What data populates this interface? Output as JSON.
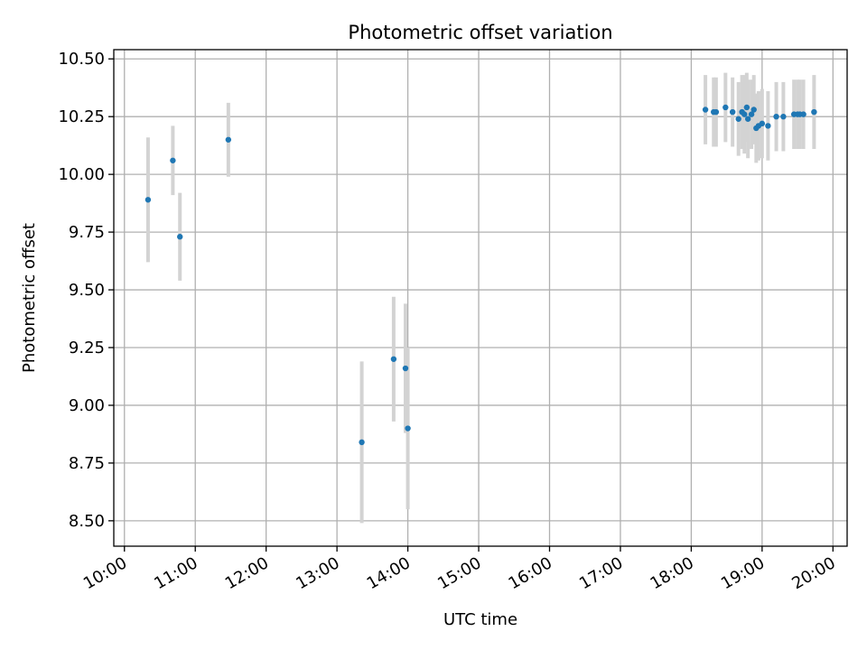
{
  "chart_data": {
    "type": "scatter",
    "title": "Photometric offset variation",
    "xlabel": "UTC time",
    "ylabel": "Photometric offset",
    "xlim": [
      "09:51",
      "20:12"
    ],
    "ylim": [
      8.39,
      10.54
    ],
    "grid": true,
    "x_ticks": [
      "10:00",
      "11:00",
      "12:00",
      "13:00",
      "14:00",
      "15:00",
      "16:00",
      "17:00",
      "18:00",
      "19:00",
      "20:00"
    ],
    "y_ticks": [
      "8.50",
      "8.75",
      "9.00",
      "9.25",
      "9.50",
      "9.75",
      "10.00",
      "10.25",
      "10.50"
    ],
    "point_color": "#1f77b4",
    "errorbar_color": "#d3d3d3",
    "series": [
      {
        "points": [
          {
            "x": "10:20",
            "y": 9.89,
            "err": 0.27
          },
          {
            "x": "10:41",
            "y": 10.06,
            "err": 0.15
          },
          {
            "x": "10:47",
            "y": 9.73,
            "err": 0.19
          },
          {
            "x": "11:28",
            "y": 10.15,
            "err": 0.16
          },
          {
            "x": "13:21",
            "y": 8.84,
            "err": 0.35
          },
          {
            "x": "13:48",
            "y": 9.2,
            "err": 0.27
          },
          {
            "x": "13:58",
            "y": 9.16,
            "err": 0.28
          },
          {
            "x": "14:00",
            "y": 8.9,
            "err": 0.35
          },
          {
            "x": "18:12",
            "y": 10.28,
            "err": 0.15
          },
          {
            "x": "18:19",
            "y": 10.27,
            "err": 0.15
          },
          {
            "x": "18:21",
            "y": 10.27,
            "err": 0.15
          },
          {
            "x": "18:29",
            "y": 10.29,
            "err": 0.15
          },
          {
            "x": "18:35",
            "y": 10.27,
            "err": 0.15
          },
          {
            "x": "18:40",
            "y": 10.24,
            "err": 0.16
          },
          {
            "x": "18:43",
            "y": 10.27,
            "err": 0.16
          },
          {
            "x": "18:45",
            "y": 10.26,
            "err": 0.17
          },
          {
            "x": "18:47",
            "y": 10.29,
            "err": 0.15
          },
          {
            "x": "18:48",
            "y": 10.24,
            "err": 0.17
          },
          {
            "x": "18:51",
            "y": 10.26,
            "err": 0.15
          },
          {
            "x": "18:53",
            "y": 10.28,
            "err": 0.15
          },
          {
            "x": "18:55",
            "y": 10.2,
            "err": 0.15
          },
          {
            "x": "18:57",
            "y": 10.21,
            "err": 0.15
          },
          {
            "x": "19:00",
            "y": 10.22,
            "err": 0.15
          },
          {
            "x": "19:05",
            "y": 10.21,
            "err": 0.15
          },
          {
            "x": "19:12",
            "y": 10.25,
            "err": 0.15
          },
          {
            "x": "19:18",
            "y": 10.25,
            "err": 0.15
          },
          {
            "x": "19:27",
            "y": 10.26,
            "err": 0.15
          },
          {
            "x": "19:30",
            "y": 10.26,
            "err": 0.15
          },
          {
            "x": "19:32",
            "y": 10.26,
            "err": 0.15
          },
          {
            "x": "19:35",
            "y": 10.26,
            "err": 0.15
          },
          {
            "x": "19:44",
            "y": 10.27,
            "err": 0.16
          }
        ]
      }
    ]
  }
}
